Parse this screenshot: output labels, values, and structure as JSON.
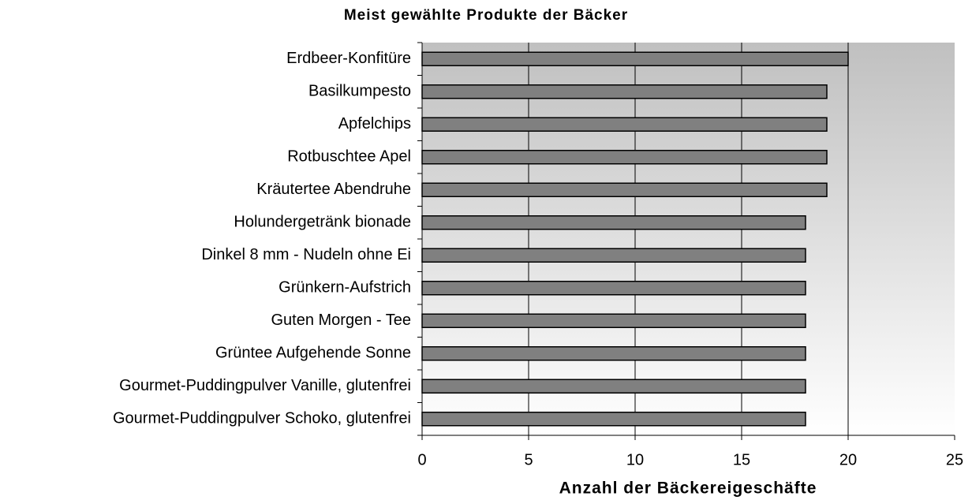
{
  "chart_data": {
    "type": "bar",
    "orientation": "horizontal",
    "title": "Meist gewählte Produkte der Bäcker",
    "x_label": "Anzahl der Bäckereigeschäfte",
    "categories": [
      "Erdbeer-Konfitüre",
      "Basilkumpesto",
      "Apfelchips",
      "Rotbuschtee Apel",
      "Kräutertee Abendruhe",
      "Holundergetränk bionade",
      "Dinkel 8 mm - Nudeln ohne Ei",
      "Grünkern-Aufstrich",
      "Guten Morgen - Tee",
      "Grüntee Aufgehende Sonne",
      "Gourmet-Puddingpulver Vanille, glutenfrei",
      "Gourmet-Puddingpulver Schoko, glutenfrei"
    ],
    "values": [
      20,
      19,
      19,
      19,
      19,
      18,
      18,
      18,
      18,
      18,
      18,
      18
    ],
    "color": "#808080",
    "xlim": [
      0,
      25
    ],
    "xticks": [
      0,
      5,
      10,
      15,
      20,
      25
    ],
    "grid": true
  }
}
